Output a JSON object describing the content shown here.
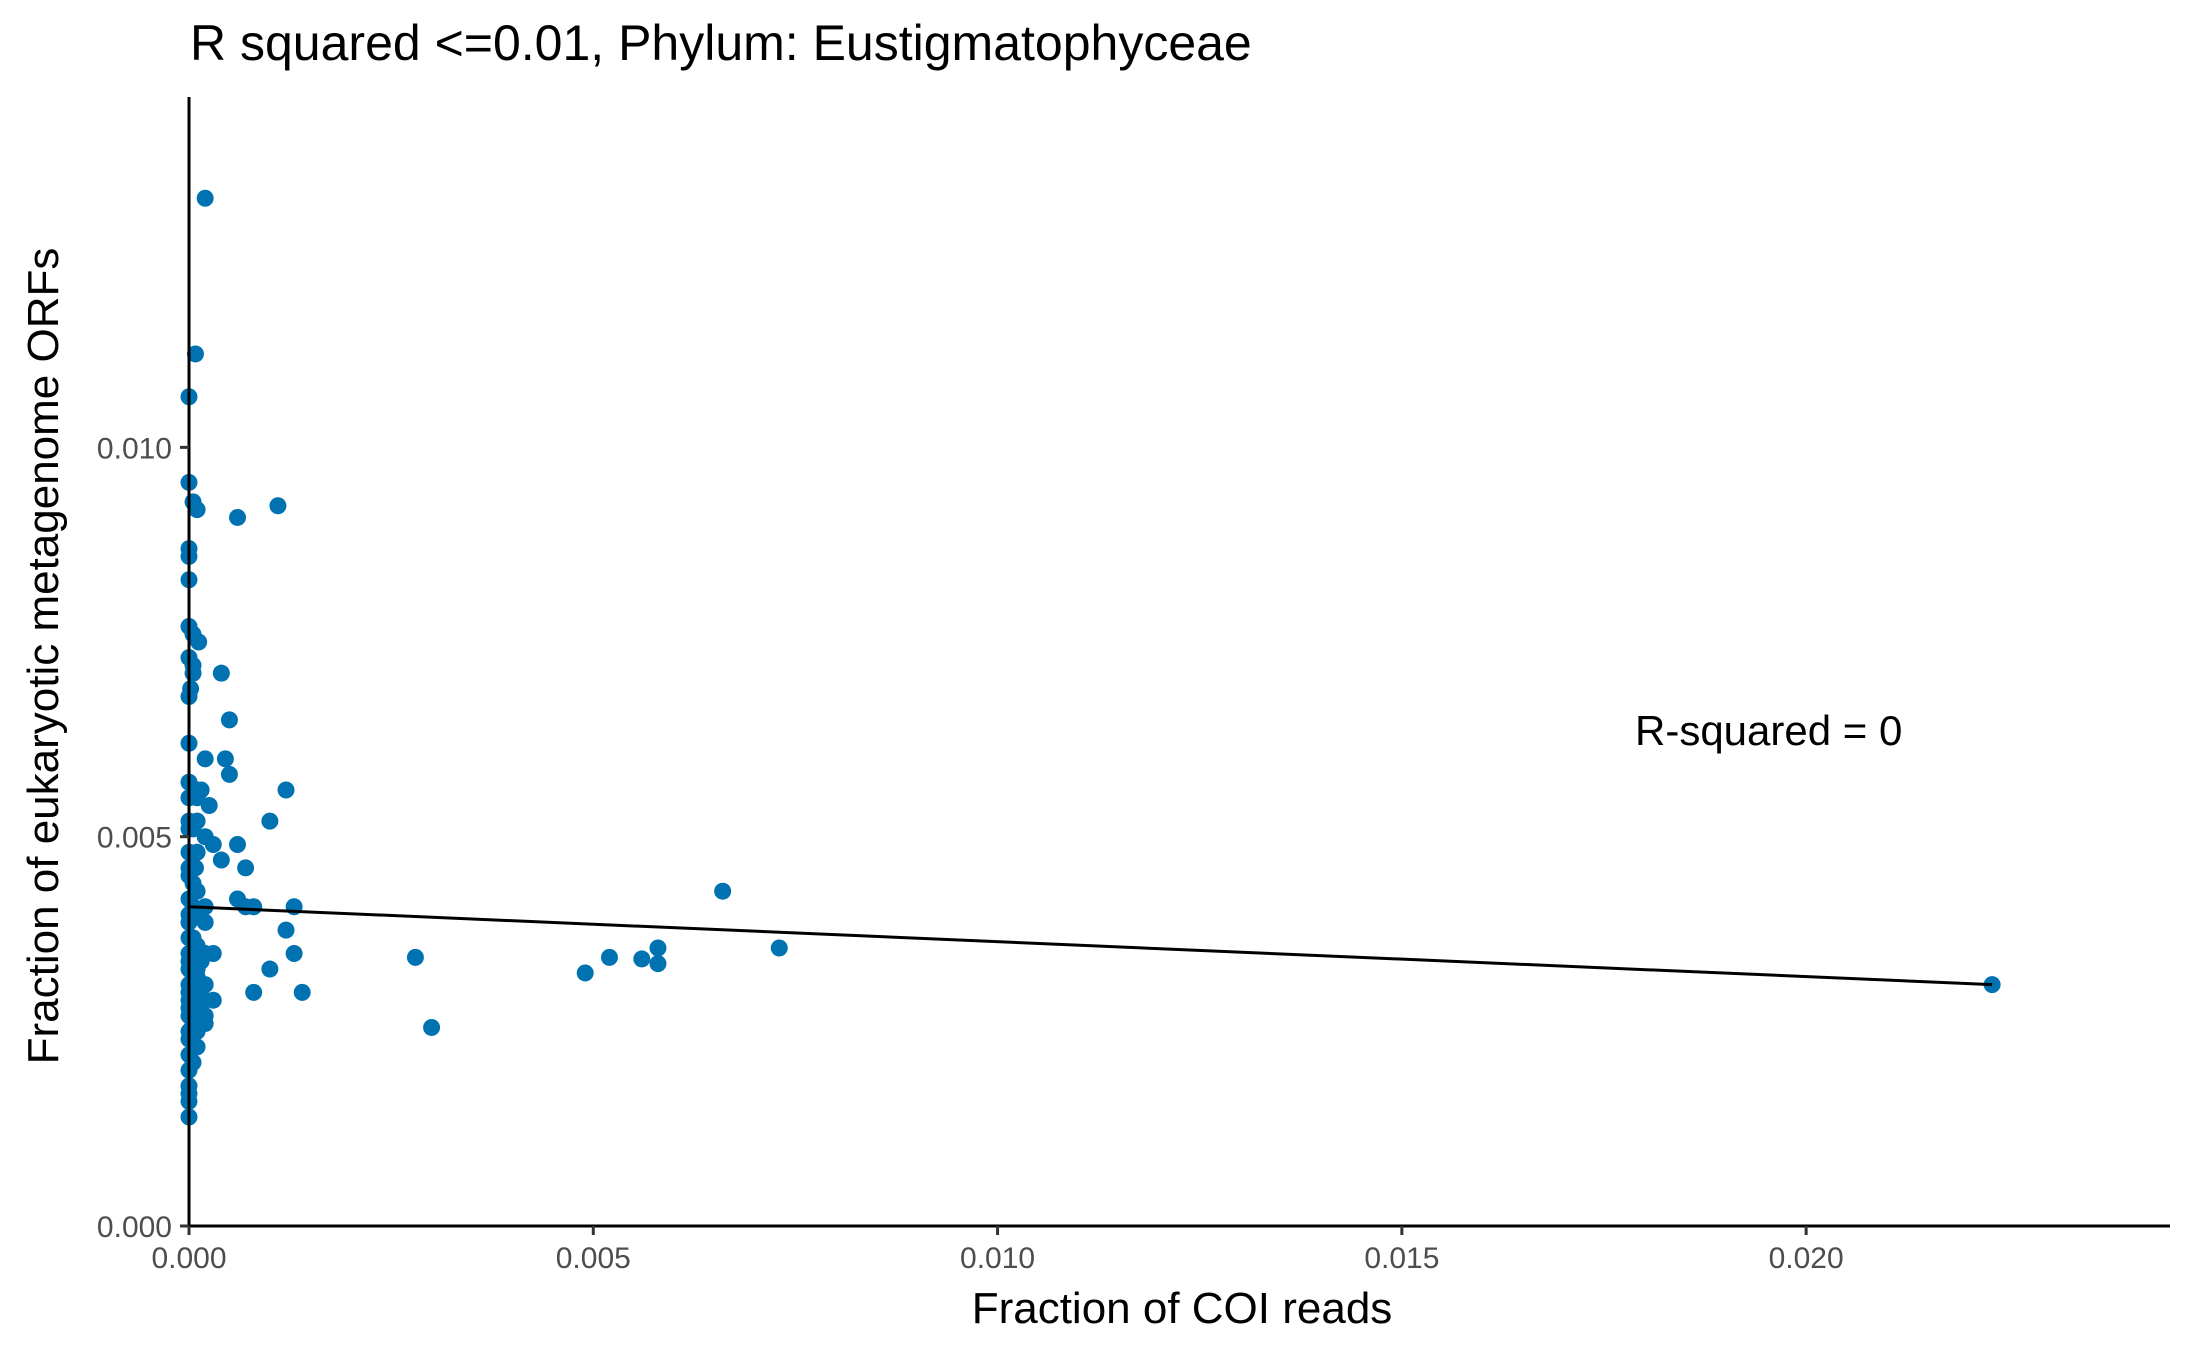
{
  "chart_data": {
    "type": "scatter",
    "title": "R squared <=0.01, Phylum:  Eustigmatophyceae",
    "xlabel": "Fraction of COI reads",
    "ylabel": "Fraction of eukaryotic metagenome ORFs",
    "xlim": [
      0,
      0.0245
    ],
    "ylim": [
      0,
      0.0145
    ],
    "x_ticks": [
      0.0,
      0.005,
      0.01,
      0.015,
      0.02
    ],
    "x_tick_labels": [
      "0.000",
      "0.005",
      "0.010",
      "0.015",
      "0.020"
    ],
    "y_ticks": [
      0.0,
      0.005,
      0.01
    ],
    "y_tick_labels": [
      "0.000",
      "0.005",
      "0.010"
    ],
    "grid": false,
    "point_color": "#0072B2",
    "line_color": "#000000",
    "annotation": "R-squared =  0",
    "fit_line": {
      "x": [
        0.0,
        0.0223
      ],
      "y": [
        0.0041,
        0.0031
      ]
    },
    "points": [
      [
        0.0002,
        0.0132
      ],
      [
        8e-05,
        0.0112
      ],
      [
        0.0,
        0.01065
      ],
      [
        0.0,
        0.00955
      ],
      [
        5e-05,
        0.0093
      ],
      [
        0.0001,
        0.0092
      ],
      [
        0.0006,
        0.0091
      ],
      [
        0.0011,
        0.00925
      ],
      [
        0.0,
        0.0087
      ],
      [
        0.0,
        0.0086
      ],
      [
        0.0,
        0.0083
      ],
      [
        0.0,
        0.0077
      ],
      [
        5e-05,
        0.0076
      ],
      [
        0.00012,
        0.0075
      ],
      [
        0.0,
        0.0073
      ],
      [
        5e-05,
        0.0072
      ],
      [
        5e-05,
        0.0071
      ],
      [
        0.0004,
        0.0071
      ],
      [
        2e-05,
        0.0069
      ],
      [
        0.0,
        0.0068
      ],
      [
        0.0005,
        0.0065
      ],
      [
        0.0,
        0.0062
      ],
      [
        0.0002,
        0.006
      ],
      [
        0.00045,
        0.006
      ],
      [
        0.0005,
        0.0058
      ],
      [
        0.0,
        0.0057
      ],
      [
        0.0001,
        0.0056
      ],
      [
        0.00015,
        0.0056
      ],
      [
        0.0012,
        0.0056
      ],
      [
        0.0,
        0.0055
      ],
      [
        0.0001,
        0.0055
      ],
      [
        0.00025,
        0.0054
      ],
      [
        0.0,
        0.0052
      ],
      [
        0.0001,
        0.0052
      ],
      [
        0.001,
        0.0052
      ],
      [
        0.0,
        0.0051
      ],
      [
        5e-05,
        0.0051
      ],
      [
        0.0002,
        0.005
      ],
      [
        0.0003,
        0.0049
      ],
      [
        0.0006,
        0.0049
      ],
      [
        0.0,
        0.0048
      ],
      [
        0.0001,
        0.0048
      ],
      [
        0.0004,
        0.0047
      ],
      [
        0.0,
        0.0046
      ],
      [
        8e-05,
        0.0046
      ],
      [
        0.0007,
        0.0046
      ],
      [
        0.0,
        0.0045
      ],
      [
        5e-05,
        0.0044
      ],
      [
        0.0001,
        0.0043
      ],
      [
        0.0,
        0.0042
      ],
      [
        0.0006,
        0.0042
      ],
      [
        5e-05,
        0.0041
      ],
      [
        0.0002,
        0.0041
      ],
      [
        0.0007,
        0.0041
      ],
      [
        0.0008,
        0.0041
      ],
      [
        0.0013,
        0.0041
      ],
      [
        0.0,
        0.004
      ],
      [
        0.0001,
        0.004
      ],
      [
        0.0,
        0.0039
      ],
      [
        0.0002,
        0.0039
      ],
      [
        0.0012,
        0.0038
      ],
      [
        0.0,
        0.0037
      ],
      [
        5e-05,
        0.0037
      ],
      [
        0.0001,
        0.0036
      ],
      [
        0.0,
        0.0035
      ],
      [
        0.0001,
        0.0035
      ],
      [
        0.0002,
        0.0035
      ],
      [
        0.0003,
        0.0035
      ],
      [
        0.0013,
        0.0035
      ],
      [
        0.0,
        0.0034
      ],
      [
        0.00015,
        0.0034
      ],
      [
        0.0,
        0.0033
      ],
      [
        0.0001,
        0.0033
      ],
      [
        5e-05,
        0.0032
      ],
      [
        0.0001,
        0.0032
      ],
      [
        0.0,
        0.0031
      ],
      [
        0.0002,
        0.0031
      ],
      [
        0.0,
        0.003
      ],
      [
        0.0001,
        0.003
      ],
      [
        0.0008,
        0.003
      ],
      [
        0.0014,
        0.003
      ],
      [
        0.0,
        0.0029
      ],
      [
        0.0002,
        0.0029
      ],
      [
        0.0003,
        0.0029
      ],
      [
        0.0,
        0.0028
      ],
      [
        0.0001,
        0.0028
      ],
      [
        0.0,
        0.0027
      ],
      [
        0.0002,
        0.0027
      ],
      [
        5e-05,
        0.0026
      ],
      [
        0.0001,
        0.0026
      ],
      [
        0.0002,
        0.0026
      ],
      [
        0.0,
        0.0025
      ],
      [
        0.0001,
        0.0025
      ],
      [
        0.0,
        0.0024
      ],
      [
        0.0001,
        0.0023
      ],
      [
        0.0,
        0.0022
      ],
      [
        5e-05,
        0.0021
      ],
      [
        0.0,
        0.002
      ],
      [
        0.0,
        0.0018
      ],
      [
        0.0,
        0.0017
      ],
      [
        0.0,
        0.0016
      ],
      [
        0.0,
        0.0014
      ],
      [
        0.001,
        0.0033
      ],
      [
        0.0028,
        0.00345
      ],
      [
        0.003,
        0.00255
      ],
      [
        0.0049,
        0.00325
      ],
      [
        0.0052,
        0.00345
      ],
      [
        0.0056,
        0.00343
      ],
      [
        0.0058,
        0.00337
      ],
      [
        0.0058,
        0.00357
      ],
      [
        0.0066,
        0.0043
      ],
      [
        0.0073,
        0.00357
      ],
      [
        0.0223,
        0.0031
      ]
    ]
  }
}
